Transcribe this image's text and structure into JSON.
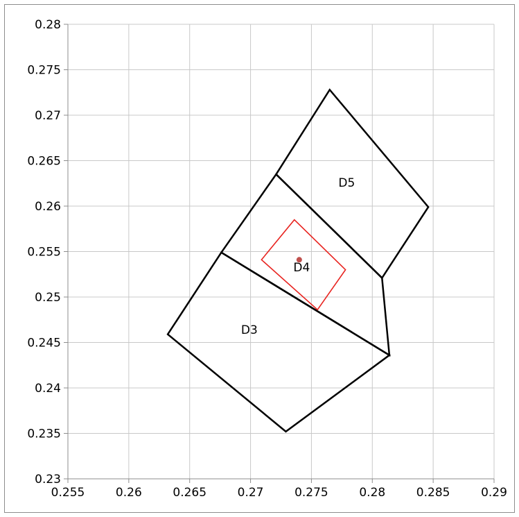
{
  "chart_data": {
    "type": "scatter",
    "title": "",
    "xlabel": "",
    "ylabel": "",
    "xlim": [
      0.255,
      0.29
    ],
    "ylim": [
      0.23,
      0.28
    ],
    "x_ticks": [
      "0.255",
      "0.26",
      "0.265",
      "0.27",
      "0.275",
      "0.28",
      "0.285",
      "0.29"
    ],
    "y_ticks": [
      "0.28",
      "0.275",
      "0.27",
      "0.265",
      "0.26",
      "0.255",
      "0.25",
      "0.245",
      "0.24",
      "0.235",
      "0.23"
    ],
    "grid": true,
    "colors": {
      "grid": "#c8c8c8",
      "axis": "#8c8c8c",
      "regions": "#000000",
      "highlight": "#e8231f",
      "point": "#c0504d"
    },
    "regions": [
      {
        "name": "D3",
        "points": [
          [
            0.2632,
            0.2459
          ],
          [
            0.2676,
            0.2549
          ],
          [
            0.2814,
            0.2436
          ],
          [
            0.2729,
            0.2352
          ]
        ]
      },
      {
        "name": "D4",
        "points": [
          [
            0.2676,
            0.2549
          ],
          [
            0.2721,
            0.2635
          ],
          [
            0.2808,
            0.2521
          ],
          [
            0.2814,
            0.2436
          ]
        ]
      },
      {
        "name": "D5",
        "points": [
          [
            0.2721,
            0.2635
          ],
          [
            0.2765,
            0.2728
          ],
          [
            0.2846,
            0.2599
          ],
          [
            0.2808,
            0.2521
          ]
        ]
      }
    ],
    "highlight_region": [
      [
        0.2709,
        0.2541
      ],
      [
        0.2736,
        0.2585
      ],
      [
        0.2778,
        0.253
      ],
      [
        0.2755,
        0.2486
      ]
    ],
    "point": {
      "x": 0.274,
      "y": 0.2541
    },
    "labels": [
      {
        "text": "D3",
        "x": 0.2699,
        "y": 0.2464
      },
      {
        "text": "D4",
        "x": 0.2742,
        "y": 0.2533
      },
      {
        "text": "D5",
        "x": 0.2779,
        "y": 0.2626
      }
    ]
  }
}
